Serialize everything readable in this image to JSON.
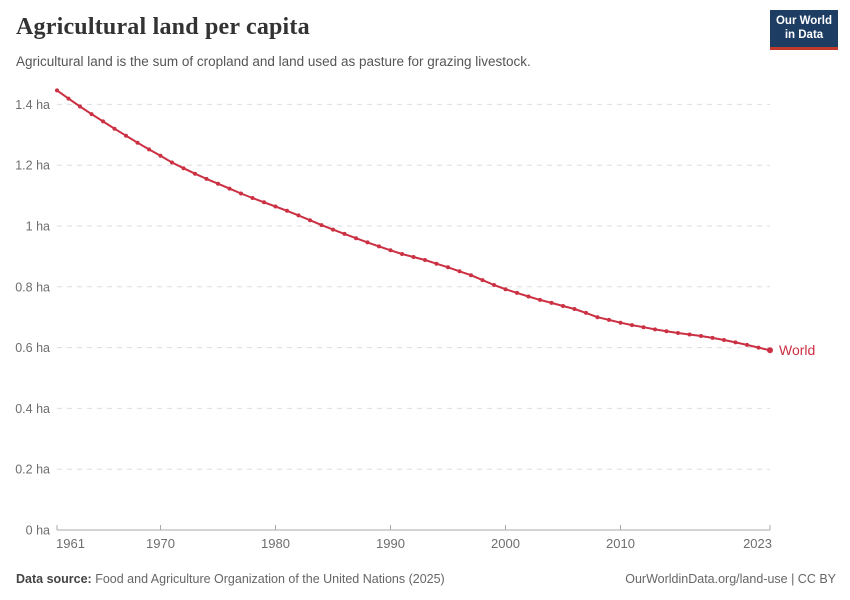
{
  "header": {
    "title": "Agricultural land per capita",
    "subtitle": "Agricultural land is the sum of cropland and land used as pasture for grazing livestock.",
    "logo": {
      "line1": "Our World",
      "line2": "in Data",
      "bg_color": "#1d3d63",
      "accent_color": "#c0392b"
    }
  },
  "chart_data": {
    "type": "line",
    "title": "Agricultural land per capita",
    "unit": "ha",
    "xlabel": "",
    "ylabel": "",
    "ylim": [
      0,
      1.4
    ],
    "xlim": [
      1961,
      2023
    ],
    "grid": "horizontal-dashed",
    "grid_color": "#dddddd",
    "axis_color": "#a8a8a8",
    "tick_label_color": "#6e6e6e",
    "y_ticks": [
      0,
      0.2,
      0.4,
      0.6,
      0.8,
      1,
      1.2,
      1.4
    ],
    "y_tick_labels": [
      "0 ha",
      "0.2 ha",
      "0.4 ha",
      "0.6 ha",
      "0.8 ha",
      "1 ha",
      "1.2 ha",
      "1.4 ha"
    ],
    "x_ticks": [
      1961,
      1970,
      1980,
      1990,
      2000,
      2010,
      2023
    ],
    "x_tick_labels": [
      "1961",
      "1970",
      "1980",
      "1990",
      "2000",
      "2010",
      "2023"
    ],
    "x": [
      1961,
      1962,
      1963,
      1964,
      1965,
      1966,
      1967,
      1968,
      1969,
      1970,
      1971,
      1972,
      1973,
      1974,
      1975,
      1976,
      1977,
      1978,
      1979,
      1980,
      1981,
      1982,
      1983,
      1984,
      1985,
      1986,
      1987,
      1988,
      1989,
      1990,
      1991,
      1992,
      1993,
      1994,
      1995,
      1996,
      1997,
      1998,
      1999,
      2000,
      2001,
      2002,
      2003,
      2004,
      2005,
      2006,
      2007,
      2008,
      2009,
      2010,
      2011,
      2012,
      2013,
      2014,
      2015,
      2016,
      2017,
      2018,
      2019,
      2020,
      2021,
      2022,
      2023
    ],
    "series": [
      {
        "name": "World",
        "color": "#cb3043",
        "values": [
          1.446,
          1.419,
          1.393,
          1.368,
          1.344,
          1.32,
          1.297,
          1.274,
          1.252,
          1.231,
          1.209,
          1.19,
          1.172,
          1.155,
          1.139,
          1.123,
          1.107,
          1.092,
          1.078,
          1.064,
          1.05,
          1.035,
          1.019,
          1.003,
          0.988,
          0.974,
          0.96,
          0.946,
          0.933,
          0.92,
          0.908,
          0.898,
          0.888,
          0.876,
          0.864,
          0.851,
          0.838,
          0.822,
          0.806,
          0.792,
          0.78,
          0.768,
          0.757,
          0.747,
          0.737,
          0.727,
          0.714,
          0.7,
          0.691,
          0.682,
          0.674,
          0.667,
          0.66,
          0.654,
          0.648,
          0.643,
          0.638,
          0.632,
          0.625,
          0.617,
          0.609,
          0.6,
          0.591
        ]
      }
    ]
  },
  "footer": {
    "source_label": "Data source:",
    "source_text": " Food and Agriculture Organization of the United Nations (2025)",
    "right_text": "OurWorldinData.org/land-use | CC BY"
  }
}
